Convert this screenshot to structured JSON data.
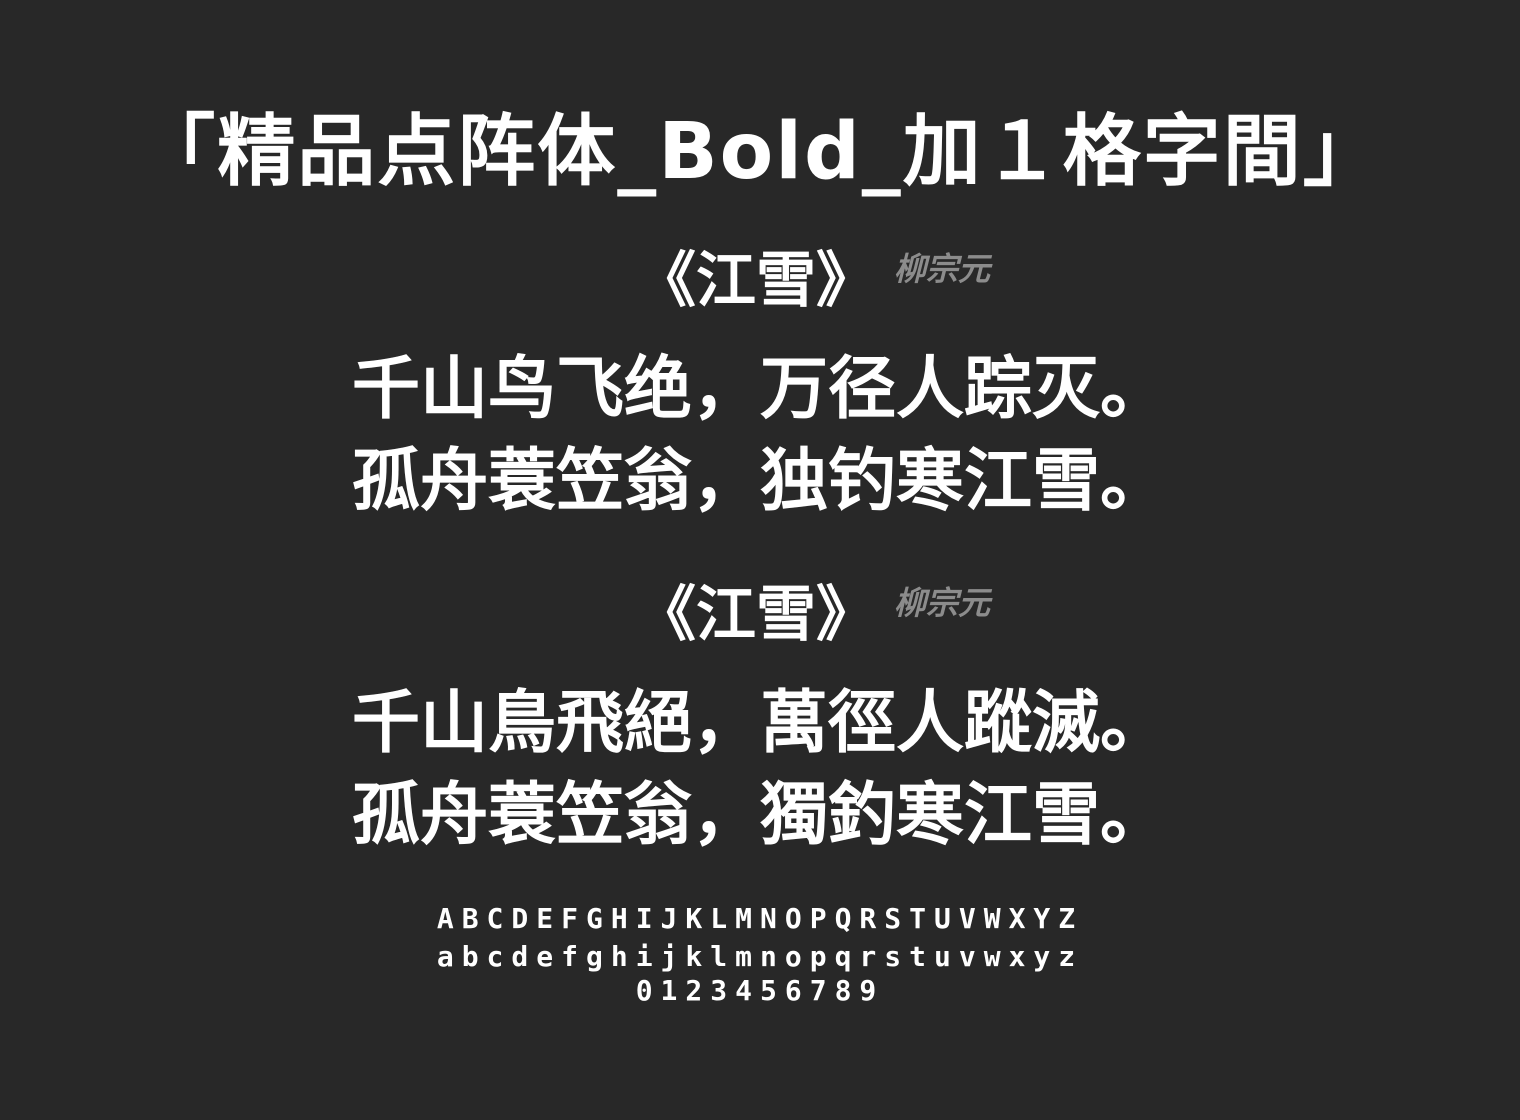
{
  "title": "「精品点阵体_Bold_加１格字間」",
  "simplified": {
    "poem_title": "《江雪》",
    "author": "柳宗元",
    "line1": "千山鸟飞绝，万径人踪灭。",
    "line2": "孤舟蓑笠翁，独钓寒江雪。"
  },
  "traditional": {
    "poem_title": "《江雪》",
    "author": "柳宗元",
    "line1": "千山鳥飛絕，萬徑人蹤滅。",
    "line2": "孤舟蓑笠翁，獨釣寒江雪。"
  },
  "glyphs": {
    "uppercase": "ABCDEFGHIJKLMNOPQRSTUVWXYZ",
    "lowercase": "abcdefghijklmnopqrstuvwxyz",
    "digits": "0123456789"
  },
  "colors": {
    "background": "#282828",
    "text": "#ffffff",
    "author": "#8c8c8c"
  }
}
